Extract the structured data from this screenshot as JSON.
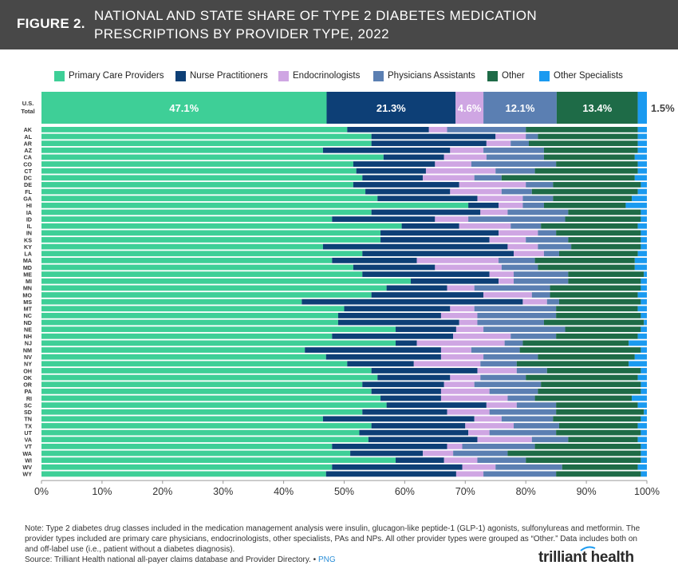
{
  "header": {
    "figure_label": "FIGURE 2.",
    "title": "NATIONAL AND STATE SHARE OF TYPE 2 DIABETES MEDICATION PRESCRIPTIONS BY PROVIDER TYPE, 2022"
  },
  "colors": {
    "header_bg": "#484848",
    "primary_care": "#3ecf97",
    "nurse_practitioners": "#0d3f76",
    "endocrinologists": "#cfa6e3",
    "physicians_assistants": "#5b7fb2",
    "other": "#1e6b47",
    "other_specialists": "#1a9af0"
  },
  "legend": [
    {
      "label": "Primary Care Providers",
      "color": "#3ecf97"
    },
    {
      "label": "Nurse Practitioners",
      "color": "#0d3f76"
    },
    {
      "label": "Endocrinologists",
      "color": "#cfa6e3"
    },
    {
      "label": "Physicians Assistants",
      "color": "#5b7fb2"
    },
    {
      "label": "Other",
      "color": "#1e6b47"
    },
    {
      "label": "Other Specialists",
      "color": "#1a9af0"
    }
  ],
  "chart_data": {
    "type": "bar",
    "orientation": "horizontal",
    "stacked": true,
    "xlabel": "",
    "ylabel": "",
    "xlim": [
      0,
      100
    ],
    "x_ticks": [
      "0%",
      "10%",
      "20%",
      "30%",
      "40%",
      "50%",
      "60%",
      "70%",
      "80%",
      "90%",
      "100%"
    ],
    "series_names": [
      "Primary Care Providers",
      "Nurse Practitioners",
      "Endocrinologists",
      "Physicians Assistants",
      "Other",
      "Other Specialists"
    ],
    "total": {
      "label": "U.S. Total",
      "values": [
        47.1,
        21.3,
        4.6,
        12.1,
        13.4,
        1.5
      ],
      "labels": [
        "47.1%",
        "21.3%",
        "4.6%",
        "12.1%",
        "13.4%",
        "1.5%"
      ]
    },
    "states": [
      {
        "state": "AK",
        "values": [
          50.5,
          13.5,
          3.0,
          13.0,
          18.5,
          1.5
        ]
      },
      {
        "state": "AL",
        "values": [
          54.5,
          20.5,
          5.0,
          2.0,
          16.5,
          1.5
        ]
      },
      {
        "state": "AR",
        "values": [
          54.5,
          19.0,
          4.0,
          3.0,
          18.0,
          1.5
        ]
      },
      {
        "state": "AZ",
        "values": [
          46.5,
          21.0,
          5.5,
          10.0,
          15.5,
          1.5
        ]
      },
      {
        "state": "CA",
        "values": [
          56.5,
          10.0,
          7.0,
          9.5,
          15.0,
          2.0
        ]
      },
      {
        "state": "CO",
        "values": [
          51.5,
          13.5,
          6.0,
          14.0,
          13.5,
          1.5
        ]
      },
      {
        "state": "CT",
        "values": [
          52.0,
          11.5,
          11.5,
          6.5,
          17.0,
          1.5
        ]
      },
      {
        "state": "DC",
        "values": [
          53.0,
          10.0,
          8.5,
          4.5,
          22.0,
          2.0
        ]
      },
      {
        "state": "DE",
        "values": [
          51.5,
          17.5,
          11.0,
          4.5,
          14.5,
          1.0
        ]
      },
      {
        "state": "FL",
        "values": [
          53.5,
          14.0,
          8.5,
          5.0,
          17.5,
          1.5
        ]
      },
      {
        "state": "GA",
        "values": [
          55.5,
          16.5,
          7.5,
          5.0,
          13.0,
          2.5
        ]
      },
      {
        "state": "HI",
        "values": [
          70.5,
          5.0,
          4.0,
          3.5,
          13.5,
          3.5
        ]
      },
      {
        "state": "IA",
        "values": [
          54.5,
          18.0,
          4.5,
          10.0,
          12.0,
          1.0
        ]
      },
      {
        "state": "ID",
        "values": [
          48.0,
          17.0,
          5.5,
          16.0,
          12.5,
          1.0
        ]
      },
      {
        "state": "IL",
        "values": [
          59.5,
          9.5,
          8.5,
          5.0,
          16.0,
          1.5
        ]
      },
      {
        "state": "IN",
        "values": [
          56.0,
          19.5,
          6.5,
          3.0,
          14.0,
          1.0
        ]
      },
      {
        "state": "KS",
        "values": [
          56.0,
          18.0,
          6.0,
          7.0,
          12.0,
          1.0
        ]
      },
      {
        "state": "KY",
        "values": [
          46.5,
          30.5,
          5.0,
          5.5,
          11.5,
          1.0
        ]
      },
      {
        "state": "LA",
        "values": [
          53.0,
          25.0,
          5.0,
          2.5,
          13.0,
          1.5
        ]
      },
      {
        "state": "MA",
        "values": [
          48.0,
          14.0,
          13.5,
          6.0,
          16.5,
          2.0
        ]
      },
      {
        "state": "MD",
        "values": [
          51.5,
          13.5,
          11.0,
          6.0,
          16.0,
          2.0
        ]
      },
      {
        "state": "ME",
        "values": [
          53.0,
          21.0,
          4.0,
          9.0,
          12.5,
          0.5
        ]
      },
      {
        "state": "MI",
        "values": [
          61.0,
          14.5,
          2.5,
          9.0,
          12.0,
          1.0
        ]
      },
      {
        "state": "MN",
        "values": [
          57.0,
          10.0,
          4.5,
          12.5,
          15.0,
          1.0
        ]
      },
      {
        "state": "MO",
        "values": [
          54.5,
          18.5,
          8.0,
          3.0,
          14.5,
          1.5
        ]
      },
      {
        "state": "MS",
        "values": [
          43.0,
          36.5,
          4.0,
          2.0,
          13.5,
          1.0
        ]
      },
      {
        "state": "MT",
        "values": [
          50.0,
          17.5,
          4.0,
          13.5,
          13.5,
          1.5
        ]
      },
      {
        "state": "NC",
        "values": [
          49.0,
          17.0,
          6.0,
          13.0,
          14.0,
          1.0
        ]
      },
      {
        "state": "ND",
        "values": [
          49.0,
          20.0,
          3.0,
          11.0,
          16.5,
          0.5
        ]
      },
      {
        "state": "NE",
        "values": [
          58.5,
          10.0,
          4.5,
          13.5,
          12.5,
          1.0
        ]
      },
      {
        "state": "NH",
        "values": [
          48.0,
          20.0,
          9.5,
          7.5,
          13.5,
          1.5
        ]
      },
      {
        "state": "NJ",
        "values": [
          58.5,
          3.5,
          14.5,
          3.0,
          17.5,
          3.0
        ]
      },
      {
        "state": "NM",
        "values": [
          43.5,
          22.5,
          5.0,
          8.0,
          20.0,
          1.0
        ]
      },
      {
        "state": "NV",
        "values": [
          47.0,
          19.0,
          7.0,
          9.0,
          16.0,
          2.0
        ]
      },
      {
        "state": "NY",
        "values": [
          50.5,
          11.0,
          11.0,
          6.0,
          18.5,
          3.0
        ]
      },
      {
        "state": "OH",
        "values": [
          54.5,
          17.5,
          6.5,
          5.0,
          15.5,
          1.0
        ]
      },
      {
        "state": "OK",
        "values": [
          55.5,
          12.0,
          5.0,
          7.5,
          18.5,
          1.5
        ]
      },
      {
        "state": "OR",
        "values": [
          53.0,
          13.5,
          5.0,
          11.0,
          16.5,
          1.0
        ]
      },
      {
        "state": "PA",
        "values": [
          54.5,
          11.5,
          8.0,
          8.0,
          17.0,
          1.0
        ]
      },
      {
        "state": "RI",
        "values": [
          56.0,
          10.0,
          11.0,
          4.5,
          16.0,
          2.5
        ]
      },
      {
        "state": "SC",
        "values": [
          57.0,
          16.5,
          5.0,
          6.5,
          13.5,
          1.5
        ]
      },
      {
        "state": "SD",
        "values": [
          53.0,
          14.0,
          7.0,
          11.0,
          14.5,
          0.5
        ]
      },
      {
        "state": "TN",
        "values": [
          46.5,
          25.0,
          4.5,
          8.5,
          14.5,
          1.0
        ]
      },
      {
        "state": "TX",
        "values": [
          54.5,
          15.5,
          8.0,
          7.5,
          13.0,
          1.5
        ]
      },
      {
        "state": "UT",
        "values": [
          52.5,
          18.0,
          3.5,
          11.0,
          14.0,
          1.0
        ]
      },
      {
        "state": "VA",
        "values": [
          54.0,
          18.0,
          9.0,
          6.0,
          11.5,
          1.5
        ]
      },
      {
        "state": "VT",
        "values": [
          48.0,
          19.0,
          2.5,
          12.0,
          17.5,
          1.0
        ]
      },
      {
        "state": "WA",
        "values": [
          51.0,
          12.0,
          5.0,
          9.0,
          22.0,
          1.0
        ]
      },
      {
        "state": "WI",
        "values": [
          58.5,
          8.0,
          5.5,
          8.0,
          19.0,
          1.0
        ]
      },
      {
        "state": "WV",
        "values": [
          48.0,
          21.5,
          5.5,
          11.0,
          12.5,
          1.5
        ]
      },
      {
        "state": "WY",
        "values": [
          47.0,
          21.5,
          4.5,
          12.0,
          14.0,
          1.0
        ]
      }
    ]
  },
  "footer": {
    "note": "Note: Type 2 diabetes drug classes included in the medication management analysis were insulin, glucagon-like peptide-1 (GLP-1) agonists, sulfonylureas and metformin. The provider types included are primary care physicians, endocrinologists, other specialists, PAs and NPs. All other provider types were grouped as “Other.” Data includes both on and off-label use (i.e., patient without a diabetes diagnosis).",
    "source": "Source: Trilliant Health national all-payer claims database and Provider Directory.",
    "separator": "•",
    "png_link": "PNG"
  },
  "logo": {
    "text": "trilliant health"
  }
}
